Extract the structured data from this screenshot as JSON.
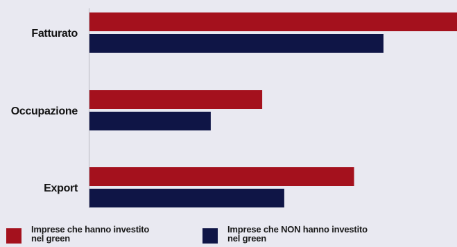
{
  "chart_data": {
    "type": "bar",
    "orientation": "horizontal",
    "categories": [
      "Fatturato",
      "Occupazione",
      "Export"
    ],
    "series": [
      {
        "name": "Imprese che hanno investito nel green",
        "legend_lines": [
          "Imprese che hanno investito",
          "nel green"
        ],
        "color": "#a4111d",
        "values": [
          100,
          47,
          72
        ]
      },
      {
        "name": "Imprese che NON hanno investito nel green",
        "legend_lines": [
          "Imprese che NON hanno investito",
          "nel green"
        ],
        "color": "#0f1546",
        "values": [
          80,
          33,
          53
        ]
      }
    ],
    "xlim": [
      0,
      100
    ],
    "title": "",
    "xlabel": "",
    "ylabel": "",
    "grid": false,
    "legend_position": "bottom"
  }
}
